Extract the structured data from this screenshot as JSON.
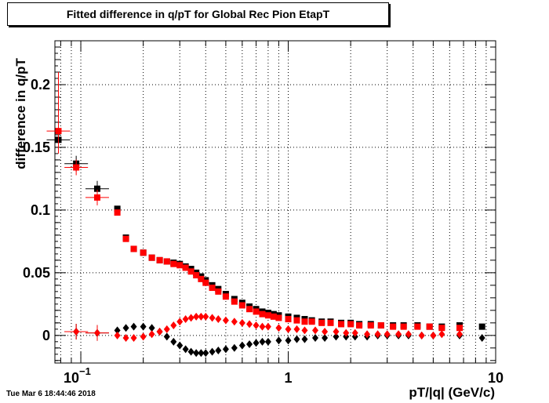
{
  "title": "Fitted difference in q/pT for Global Rec Pion EtapT",
  "timestamp": "Tue Mar  6 18:44:46 2018",
  "chart_data": {
    "type": "scatter",
    "title": "Fitted difference in q/pT for Global Rec Pion EtapT",
    "xlabel": "pT/|q| (GeV/c)",
    "ylabel": "difference in q/pT",
    "x_scale": "log",
    "xlim": [
      0.075,
      10
    ],
    "ylim": [
      -0.022,
      0.235
    ],
    "grid": true,
    "x_tick_labels": [
      {
        "value": 0.1,
        "base": "10",
        "exp": "−1"
      },
      {
        "value": 1,
        "text": "1"
      },
      {
        "value": 10,
        "text": "10"
      }
    ],
    "y_ticks": [
      0,
      0.05,
      0.1,
      0.15,
      0.2
    ],
    "y_tick_labels": [
      "0",
      "0.05",
      "0.1",
      "0.15",
      "0.2"
    ],
    "series": [
      {
        "color": "#000000",
        "marker": "square",
        "points": [
          {
            "x": 0.078,
            "y": 0.156
          },
          {
            "x": 0.095,
            "y": 0.137
          },
          {
            "x": 0.12,
            "y": 0.117
          },
          {
            "x": 0.15,
            "y": 0.101
          },
          {
            "x": 0.165,
            "y": 0.078
          },
          {
            "x": 0.18,
            "y": 0.069
          },
          {
            "x": 0.2,
            "y": 0.066
          },
          {
            "x": 0.22,
            "y": 0.062
          },
          {
            "x": 0.24,
            "y": 0.06
          },
          {
            "x": 0.26,
            "y": 0.059
          },
          {
            "x": 0.28,
            "y": 0.058
          },
          {
            "x": 0.3,
            "y": 0.057
          },
          {
            "x": 0.32,
            "y": 0.055
          },
          {
            "x": 0.34,
            "y": 0.053
          },
          {
            "x": 0.36,
            "y": 0.05
          },
          {
            "x": 0.38,
            "y": 0.047
          },
          {
            "x": 0.4,
            "y": 0.044
          },
          {
            "x": 0.43,
            "y": 0.04
          },
          {
            "x": 0.46,
            "y": 0.037
          },
          {
            "x": 0.5,
            "y": 0.033
          },
          {
            "x": 0.55,
            "y": 0.029
          },
          {
            "x": 0.6,
            "y": 0.026
          },
          {
            "x": 0.65,
            "y": 0.023
          },
          {
            "x": 0.7,
            "y": 0.021
          },
          {
            "x": 0.75,
            "y": 0.019
          },
          {
            "x": 0.8,
            "y": 0.018
          },
          {
            "x": 0.85,
            "y": 0.017
          },
          {
            "x": 0.9,
            "y": 0.016
          },
          {
            "x": 1.0,
            "y": 0.015
          },
          {
            "x": 1.1,
            "y": 0.014
          },
          {
            "x": 1.2,
            "y": 0.013
          },
          {
            "x": 1.3,
            "y": 0.012
          },
          {
            "x": 1.45,
            "y": 0.011
          },
          {
            "x": 1.6,
            "y": 0.011
          },
          {
            "x": 1.8,
            "y": 0.01
          },
          {
            "x": 2.0,
            "y": 0.01
          },
          {
            "x": 2.2,
            "y": 0.009
          },
          {
            "x": 2.5,
            "y": 0.009
          },
          {
            "x": 2.8,
            "y": 0.008
          },
          {
            "x": 3.2,
            "y": 0.008
          },
          {
            "x": 3.6,
            "y": 0.008
          },
          {
            "x": 4.2,
            "y": 0.008
          },
          {
            "x": 4.8,
            "y": 0.007
          },
          {
            "x": 5.5,
            "y": 0.007
          },
          {
            "x": 6.7,
            "y": 0.008
          },
          {
            "x": 8.6,
            "y": 0.007
          }
        ]
      },
      {
        "color": "#ff0000",
        "marker": "square",
        "points": [
          {
            "x": 0.078,
            "y": 0.163
          },
          {
            "x": 0.095,
            "y": 0.134
          },
          {
            "x": 0.12,
            "y": 0.11
          },
          {
            "x": 0.15,
            "y": 0.098
          },
          {
            "x": 0.165,
            "y": 0.077
          },
          {
            "x": 0.18,
            "y": 0.069
          },
          {
            "x": 0.2,
            "y": 0.066
          },
          {
            "x": 0.22,
            "y": 0.062
          },
          {
            "x": 0.24,
            "y": 0.06
          },
          {
            "x": 0.26,
            "y": 0.059
          },
          {
            "x": 0.28,
            "y": 0.057
          },
          {
            "x": 0.3,
            "y": 0.056
          },
          {
            "x": 0.32,
            "y": 0.054
          },
          {
            "x": 0.34,
            "y": 0.051
          },
          {
            "x": 0.36,
            "y": 0.048
          },
          {
            "x": 0.38,
            "y": 0.045
          },
          {
            "x": 0.4,
            "y": 0.042
          },
          {
            "x": 0.43,
            "y": 0.038
          },
          {
            "x": 0.46,
            "y": 0.035
          },
          {
            "x": 0.5,
            "y": 0.031
          },
          {
            "x": 0.55,
            "y": 0.027
          },
          {
            "x": 0.6,
            "y": 0.024
          },
          {
            "x": 0.65,
            "y": 0.021
          },
          {
            "x": 0.7,
            "y": 0.019
          },
          {
            "x": 0.75,
            "y": 0.017
          },
          {
            "x": 0.8,
            "y": 0.016
          },
          {
            "x": 0.85,
            "y": 0.015
          },
          {
            "x": 0.9,
            "y": 0.014
          },
          {
            "x": 1.0,
            "y": 0.013
          },
          {
            "x": 1.1,
            "y": 0.012
          },
          {
            "x": 1.2,
            "y": 0.011
          },
          {
            "x": 1.3,
            "y": 0.011
          },
          {
            "x": 1.45,
            "y": 0.01
          },
          {
            "x": 1.6,
            "y": 0.01
          },
          {
            "x": 1.8,
            "y": 0.009
          },
          {
            "x": 2.0,
            "y": 0.009
          },
          {
            "x": 2.2,
            "y": 0.008
          },
          {
            "x": 2.5,
            "y": 0.008
          },
          {
            "x": 2.8,
            "y": 0.008
          },
          {
            "x": 3.2,
            "y": 0.007
          },
          {
            "x": 3.6,
            "y": 0.007
          },
          {
            "x": 4.2,
            "y": 0.007
          },
          {
            "x": 4.8,
            "y": 0.007
          },
          {
            "x": 5.5,
            "y": 0.006
          },
          {
            "x": 6.7,
            "y": 0.006
          }
        ]
      },
      {
        "color": "#000000",
        "marker": "diamond",
        "points": [
          {
            "x": 0.095,
            "y": 0.003
          },
          {
            "x": 0.12,
            "y": 0.002
          },
          {
            "x": 0.15,
            "y": 0.004
          },
          {
            "x": 0.165,
            "y": 0.006
          },
          {
            "x": 0.18,
            "y": 0.007
          },
          {
            "x": 0.2,
            "y": 0.007
          },
          {
            "x": 0.22,
            "y": 0.006
          },
          {
            "x": 0.24,
            "y": 0.003
          },
          {
            "x": 0.26,
            "y": -0.001
          },
          {
            "x": 0.28,
            "y": -0.005
          },
          {
            "x": 0.3,
            "y": -0.008
          },
          {
            "x": 0.32,
            "y": -0.011
          },
          {
            "x": 0.34,
            "y": -0.013
          },
          {
            "x": 0.36,
            "y": -0.014
          },
          {
            "x": 0.38,
            "y": -0.014
          },
          {
            "x": 0.4,
            "y": -0.014
          },
          {
            "x": 0.43,
            "y": -0.013
          },
          {
            "x": 0.46,
            "y": -0.012
          },
          {
            "x": 0.5,
            "y": -0.011
          },
          {
            "x": 0.55,
            "y": -0.01
          },
          {
            "x": 0.6,
            "y": -0.008
          },
          {
            "x": 0.65,
            "y": -0.007
          },
          {
            "x": 0.7,
            "y": -0.006
          },
          {
            "x": 0.75,
            "y": -0.005
          },
          {
            "x": 0.8,
            "y": -0.005
          },
          {
            "x": 0.9,
            "y": -0.004
          },
          {
            "x": 1.0,
            "y": -0.004
          },
          {
            "x": 1.1,
            "y": -0.003
          },
          {
            "x": 1.2,
            "y": -0.003
          },
          {
            "x": 1.35,
            "y": -0.002
          },
          {
            "x": 1.5,
            "y": -0.002
          },
          {
            "x": 1.7,
            "y": -0.001
          },
          {
            "x": 1.9,
            "y": -0.001
          },
          {
            "x": 2.1,
            "y": -0.001
          },
          {
            "x": 2.4,
            "y": -0.001
          },
          {
            "x": 2.7,
            "y": 0.0
          },
          {
            "x": 3.0,
            "y": 0.0
          },
          {
            "x": 3.4,
            "y": 0.0
          },
          {
            "x": 3.8,
            "y": 0.0
          },
          {
            "x": 4.4,
            "y": 0.0
          },
          {
            "x": 5.0,
            "y": 0.0
          },
          {
            "x": 6.7,
            "y": 0.0
          },
          {
            "x": 8.6,
            "y": -0.002
          }
        ]
      },
      {
        "color": "#ff0000",
        "marker": "diamond",
        "points": [
          {
            "x": 0.095,
            "y": 0.003
          },
          {
            "x": 0.12,
            "y": 0.002
          },
          {
            "x": 0.15,
            "y": 0.0
          },
          {
            "x": 0.165,
            "y": -0.002
          },
          {
            "x": 0.18,
            "y": -0.002
          },
          {
            "x": 0.2,
            "y": -0.001
          },
          {
            "x": 0.22,
            "y": 0.001
          },
          {
            "x": 0.24,
            "y": 0.003
          },
          {
            "x": 0.26,
            "y": 0.005
          },
          {
            "x": 0.28,
            "y": 0.008
          },
          {
            "x": 0.3,
            "y": 0.011
          },
          {
            "x": 0.32,
            "y": 0.013
          },
          {
            "x": 0.34,
            "y": 0.014
          },
          {
            "x": 0.36,
            "y": 0.015
          },
          {
            "x": 0.38,
            "y": 0.015
          },
          {
            "x": 0.4,
            "y": 0.015
          },
          {
            "x": 0.43,
            "y": 0.014
          },
          {
            "x": 0.46,
            "y": 0.013
          },
          {
            "x": 0.5,
            "y": 0.012
          },
          {
            "x": 0.55,
            "y": 0.011
          },
          {
            "x": 0.6,
            "y": 0.01
          },
          {
            "x": 0.65,
            "y": 0.009
          },
          {
            "x": 0.7,
            "y": 0.008
          },
          {
            "x": 0.75,
            "y": 0.007
          },
          {
            "x": 0.8,
            "y": 0.007
          },
          {
            "x": 0.9,
            "y": 0.006
          },
          {
            "x": 1.0,
            "y": 0.005
          },
          {
            "x": 1.1,
            "y": 0.005
          },
          {
            "x": 1.2,
            "y": 0.004
          },
          {
            "x": 1.35,
            "y": 0.004
          },
          {
            "x": 1.5,
            "y": 0.003
          },
          {
            "x": 1.7,
            "y": 0.003
          },
          {
            "x": 1.9,
            "y": 0.002
          },
          {
            "x": 2.1,
            "y": 0.002
          },
          {
            "x": 2.4,
            "y": 0.001
          },
          {
            "x": 2.7,
            "y": 0.001
          },
          {
            "x": 3.0,
            "y": 0.001
          },
          {
            "x": 3.4,
            "y": 0.001
          },
          {
            "x": 3.8,
            "y": 0.001
          },
          {
            "x": 4.4,
            "y": 0.0
          },
          {
            "x": 5.0,
            "y": 0.0
          },
          {
            "x": 5.5,
            "y": 0.001
          },
          {
            "x": 6.7,
            "y": 0.001
          }
        ]
      }
    ]
  }
}
